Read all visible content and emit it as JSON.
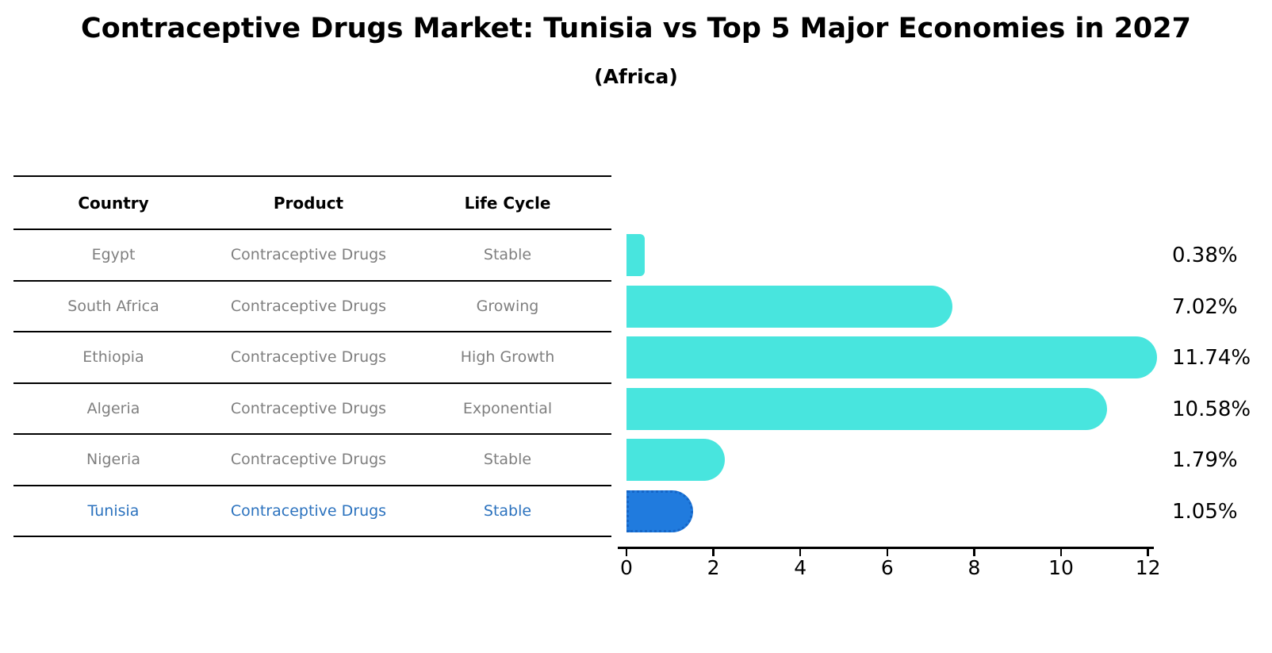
{
  "title": "Contraceptive Drugs Market: Tunisia vs Top 5 Major Economies in 2027",
  "subtitle": "(Africa)",
  "table": {
    "headers": [
      "Country",
      "Product",
      "Life Cycle"
    ],
    "rows": [
      {
        "country": "Egypt",
        "product": "Contraceptive Drugs",
        "life_cycle": "Stable",
        "highlight": false
      },
      {
        "country": "South Africa",
        "product": "Contraceptive Drugs",
        "life_cycle": "Growing",
        "highlight": false
      },
      {
        "country": "Ethiopia",
        "product": "Contraceptive Drugs",
        "life_cycle": "High Growth",
        "highlight": false
      },
      {
        "country": "Algeria",
        "product": "Contraceptive Drugs",
        "life_cycle": "Exponential",
        "highlight": false
      },
      {
        "country": "Nigeria",
        "product": "Contraceptive Drugs",
        "life_cycle": "Stable",
        "highlight": false
      },
      {
        "country": "Tunisia",
        "product": "Contraceptive Drugs",
        "life_cycle": "Stable",
        "highlight": true
      }
    ]
  },
  "chart_data": {
    "type": "bar",
    "orientation": "horizontal",
    "title": "Contraceptive Drugs Market: Tunisia vs Top 5 Major Economies in 2027 (Africa)",
    "categories": [
      "Egypt",
      "South Africa",
      "Ethiopia",
      "Algeria",
      "Nigeria",
      "Tunisia"
    ],
    "values": [
      0.38,
      7.02,
      11.74,
      10.58,
      1.79,
      1.05
    ],
    "value_labels": [
      "0.38%",
      "7.02%",
      "11.74%",
      "10.58%",
      "1.79%",
      "1.05%"
    ],
    "highlight_category": "Tunisia",
    "x_ticks": [
      "0",
      "2",
      "4",
      "6",
      "8",
      "10",
      "12"
    ],
    "xlim": [
      0,
      12.3
    ],
    "grid": false,
    "legend": false
  },
  "colors": {
    "bar_default": "#48E5DE",
    "bar_highlight": "#207BDE",
    "bar_highlight_border": "#1565C6",
    "highlight_text": "#2B72BE",
    "row_text": "#7F7F7F",
    "header_text": "#000000",
    "axis_text": "#000000",
    "background": "#FFFFFF"
  }
}
